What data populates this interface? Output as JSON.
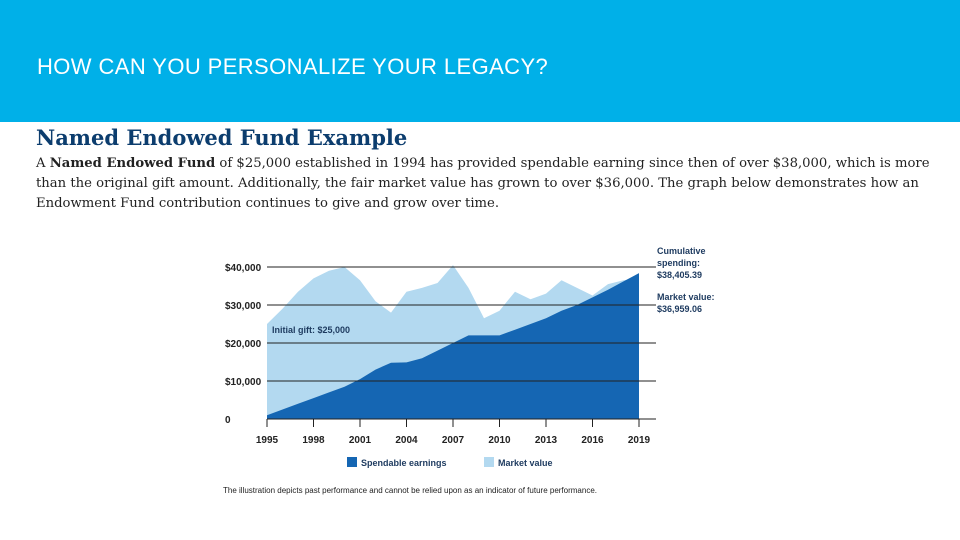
{
  "slide": {
    "title": "HOW CAN YOU PERSONALIZE YOUR LEGACY?",
    "subtitle": "Named Endowed Fund Example",
    "body": {
      "lead": "A ",
      "bold": "Named Endowed Fund",
      "rest": " of $25,000 established in 1994 has provided spendable earning since then of over $38,000, which is more than the original gift amount.  Additionally, the fair market value has grown to over $36,000. The graph below demonstrates how an Endowment Fund contribution continues to give and grow over time."
    },
    "disclaimer": "The illustration depicts past performance and cannot be relied upon as an indicator of future performance."
  },
  "colors": {
    "banner": "#00b0e8",
    "spendable": "#1566b3",
    "market": "#b3d9f0",
    "gridline": "#222222"
  },
  "chart_data": {
    "type": "area",
    "title": "",
    "xlabel": "",
    "ylabel": "",
    "xlim": [
      1995,
      2019
    ],
    "ylim": [
      0,
      40000
    ],
    "ytick_values": [
      0,
      10000,
      20000,
      30000,
      40000
    ],
    "ytick_labels": [
      "0",
      "$10,000",
      "$20,000",
      "$30,000",
      "$40,000"
    ],
    "xtick_values": [
      1995,
      1998,
      2001,
      2004,
      2007,
      2010,
      2013,
      2016,
      2019
    ],
    "xtick_labels": [
      "1995",
      "1998",
      "2001",
      "2004",
      "2007",
      "2010",
      "2013",
      "2016",
      "2019"
    ],
    "series": [
      {
        "name": "Spendable earnings",
        "x": [
          1995,
          1996,
          1997,
          1998,
          1999,
          2000,
          2001,
          2002,
          2003,
          2004,
          2005,
          2006,
          2007,
          2008,
          2009,
          2010,
          2011,
          2012,
          2013,
          2014,
          2015,
          2016,
          2017,
          2018,
          2019
        ],
        "values": [
          1000,
          2500,
          4000,
          5500,
          7000,
          8500,
          10500,
          13000,
          14800,
          14900,
          16000,
          18000,
          20000,
          22000,
          22000,
          22000,
          23500,
          25000,
          26500,
          28500,
          30000,
          32000,
          34000,
          36200,
          38405
        ]
      },
      {
        "name": "Market value",
        "x": [
          1995,
          1996,
          1997,
          1998,
          1999,
          2000,
          2001,
          2002,
          2003,
          2004,
          2005,
          2006,
          2007,
          2008,
          2009,
          2010,
          2011,
          2012,
          2013,
          2014,
          2015,
          2016,
          2017,
          2018,
          2019
        ],
        "values": [
          25000,
          29000,
          33500,
          37000,
          39000,
          40000,
          36500,
          31000,
          28000,
          33500,
          34500,
          35800,
          40500,
          34500,
          26500,
          28500,
          33500,
          31500,
          33000,
          36500,
          34500,
          32500,
          35500,
          36500,
          36959
        ]
      }
    ],
    "annotations": {
      "initial_gift": "Initial gift: $25,000",
      "cumulative_label": [
        "Cumulative",
        "spending:",
        "$38,405.39"
      ],
      "market_label": [
        "Market value:",
        "$36,959.06"
      ]
    },
    "legend": {
      "position": "bottom",
      "items": [
        "Spendable earnings",
        "Market value"
      ]
    }
  }
}
